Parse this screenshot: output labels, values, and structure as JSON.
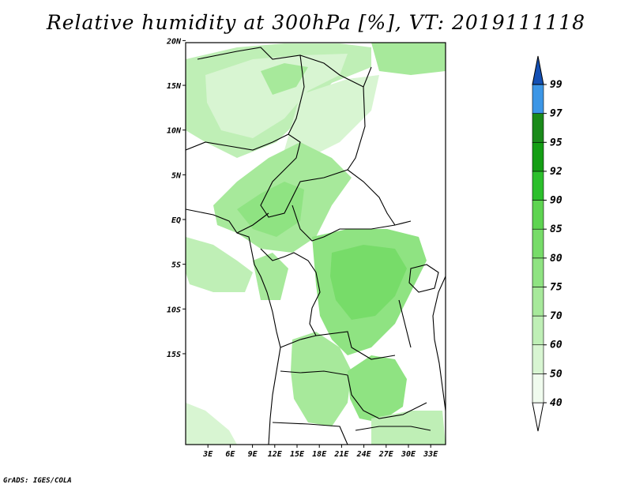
{
  "title": "Relative humidity at 300hPa [%], VT: 2019111118",
  "credit": "GrADS: IGES/COLA",
  "map": {
    "lat_ticks": [
      {
        "value": 20,
        "label": "20N"
      },
      {
        "value": 15,
        "label": "15N"
      },
      {
        "value": 10,
        "label": "10N"
      },
      {
        "value": 5,
        "label": "5N"
      },
      {
        "value": 0,
        "label": "EQ"
      },
      {
        "value": -5,
        "label": "5S"
      },
      {
        "value": -10,
        "label": "10S"
      },
      {
        "value": -15,
        "label": "15S"
      }
    ],
    "lon_ticks": [
      {
        "value": 3,
        "label": "3E"
      },
      {
        "value": 6,
        "label": "6E"
      },
      {
        "value": 9,
        "label": "9E"
      },
      {
        "value": 12,
        "label": "12E"
      },
      {
        "value": 15,
        "label": "15E"
      },
      {
        "value": 18,
        "label": "18E"
      },
      {
        "value": 21,
        "label": "21E"
      },
      {
        "value": 24,
        "label": "24E"
      },
      {
        "value": 27,
        "label": "27E"
      },
      {
        "value": 30,
        "label": "30E"
      },
      {
        "value": 33,
        "label": "33E"
      }
    ]
  },
  "colorbar": {
    "levels": [
      "40",
      "50",
      "60",
      "70",
      "75",
      "80",
      "85",
      "90",
      "92",
      "95",
      "97",
      "99"
    ],
    "colors": [
      "#f0fbee",
      "#d8f5d2",
      "#bfefb6",
      "#a7e99b",
      "#8fe382",
      "#77dc69",
      "#5ed451",
      "#2cbf2c",
      "#149e14",
      "#1a8a1a",
      "#3c96e6",
      "#1e6ed2",
      "#1450b4"
    ],
    "under_color": "#ffffff"
  }
}
